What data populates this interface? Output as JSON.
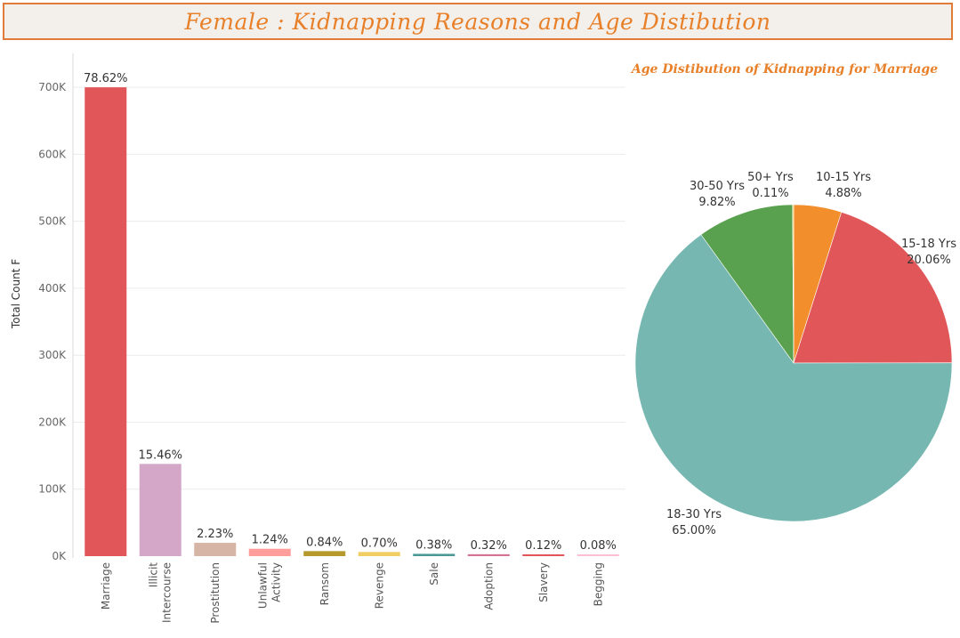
{
  "title": "Female : Kidnapping Reasons and Age Distibution",
  "chart_data": [
    {
      "type": "bar",
      "ylabel": "Total Count F",
      "xlabel": "",
      "ylim": [
        0,
        740000
      ],
      "yticks": [
        0,
        100000,
        200000,
        300000,
        400000,
        500000,
        600000,
        700000
      ],
      "ytick_labels": [
        "0K",
        "100K",
        "200K",
        "300K",
        "400K",
        "500K",
        "600K",
        "700K"
      ],
      "grid": true,
      "categories": [
        [
          "Marriage"
        ],
        [
          "Illicit",
          "Intercourse"
        ],
        [
          "Prostitution"
        ],
        [
          "Unlawful",
          "Activity"
        ],
        [
          "Ransom"
        ],
        [
          "Revenge"
        ],
        [
          "Sale"
        ],
        [
          "Adoption"
        ],
        [
          "Slavery"
        ],
        [
          "Begging"
        ]
      ],
      "values": [
        700000,
        137700,
        19900,
        11000,
        7500,
        6200,
        3400,
        2850,
        1070,
        710
      ],
      "data_labels": [
        "78.62%",
        "15.46%",
        "2.23%",
        "1.24%",
        "0.84%",
        "0.70%",
        "0.38%",
        "0.32%",
        "0.12%",
        "0.08%"
      ],
      "colors": [
        "#e15759",
        "#d4a6c8",
        "#d7b5a6",
        "#ff9d9a",
        "#b6992d",
        "#f1ce63",
        "#499894",
        "#d37295",
        "#e15759",
        "#fabfd2"
      ]
    },
    {
      "type": "pie",
      "title": "Age Distibution of Kidnapping for Marriage",
      "slices": [
        {
          "name": "10-15 Yrs",
          "value": 4.88,
          "label": "4.88%",
          "color": "#f28e2b"
        },
        {
          "name": "15-18 Yrs",
          "value": 20.06,
          "label": "20.06%",
          "color": "#e15759"
        },
        {
          "name": "18-30 Yrs",
          "value": 65.0,
          "label": "65.00%",
          "color": "#76b7b2"
        },
        {
          "name": "30-50 Yrs",
          "value": 9.82,
          "label": "9.82%",
          "color": "#59a14f"
        },
        {
          "name": "50+ Yrs",
          "value": 0.11,
          "label": "0.11%",
          "color": "#edc948"
        }
      ]
    }
  ]
}
